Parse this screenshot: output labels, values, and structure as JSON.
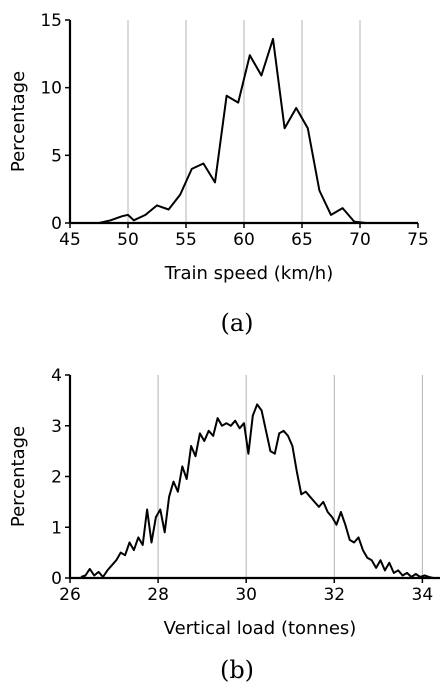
{
  "chart_data": [
    {
      "type": "line",
      "panel_label": "(a)",
      "xlabel": "Train speed (km/h)",
      "ylabel": "Percentage",
      "xlim": [
        45,
        75
      ],
      "ylim": [
        0,
        15
      ],
      "xticks": [
        45,
        50,
        55,
        60,
        65,
        70,
        75
      ],
      "yticks": [
        0,
        5,
        10,
        15
      ],
      "xgrid": [
        50,
        55,
        60,
        65,
        70
      ],
      "grid": "vertical",
      "series": [
        {
          "x": [
            47.5,
            48.5,
            49.5,
            50.0,
            50.5,
            51.5,
            52.5,
            53.5,
            54.5,
            55.5,
            56.5,
            57.5,
            58.5,
            59.5,
            60.5,
            61.5,
            62.5,
            63.5,
            64.5,
            65.5,
            66.5,
            67.5,
            68.5,
            69.5,
            70.5,
            71.5,
            72.5
          ],
          "y": [
            0.0,
            0.2,
            0.5,
            0.6,
            0.2,
            0.6,
            1.3,
            1.0,
            2.1,
            4.0,
            4.4,
            3.0,
            9.4,
            8.9,
            12.4,
            10.9,
            13.6,
            7.0,
            8.5,
            7.0,
            2.4,
            0.6,
            1.1,
            0.1,
            0.0,
            0.0,
            0.0
          ]
        }
      ]
    },
    {
      "type": "line",
      "panel_label": "(b)",
      "xlabel": "Vertical load (tonnes)",
      "ylabel": "Percentage",
      "xlim": [
        26,
        34.4
      ],
      "ylim": [
        0,
        4
      ],
      "xticks": [
        26,
        28,
        30,
        32,
        34
      ],
      "yticks": [
        0,
        1,
        2,
        3,
        4
      ],
      "xgrid": [
        28,
        30,
        32,
        34
      ],
      "grid": "vertical",
      "series": [
        {
          "x": [
            26.25,
            26.35,
            26.45,
            26.55,
            26.65,
            26.75,
            26.85,
            26.95,
            27.05,
            27.15,
            27.25,
            27.35,
            27.45,
            27.55,
            27.65,
            27.75,
            27.85,
            27.95,
            28.05,
            28.15,
            28.25,
            28.35,
            28.45,
            28.55,
            28.65,
            28.75,
            28.85,
            28.95,
            29.05,
            29.15,
            29.25,
            29.35,
            29.45,
            29.55,
            29.65,
            29.75,
            29.85,
            29.95,
            30.05,
            30.15,
            30.25,
            30.35,
            30.45,
            30.55,
            30.65,
            30.75,
            30.85,
            30.95,
            31.05,
            31.15,
            31.25,
            31.35,
            31.45,
            31.55,
            31.65,
            31.75,
            31.85,
            31.95,
            32.05,
            32.15,
            32.25,
            32.35,
            32.45,
            32.55,
            32.65,
            32.75,
            32.85,
            32.95,
            33.05,
            33.15,
            33.25,
            33.35,
            33.45,
            33.55,
            33.65,
            33.75,
            33.85,
            33.95,
            34.05,
            34.15,
            34.25
          ],
          "y": [
            0.02,
            0.05,
            0.18,
            0.05,
            0.12,
            0.02,
            0.15,
            0.25,
            0.35,
            0.5,
            0.45,
            0.7,
            0.55,
            0.8,
            0.65,
            1.35,
            0.7,
            1.2,
            1.35,
            0.9,
            1.6,
            1.9,
            1.7,
            2.2,
            1.95,
            2.6,
            2.4,
            2.85,
            2.7,
            2.9,
            2.8,
            3.15,
            3.0,
            3.05,
            3.0,
            3.1,
            2.95,
            3.05,
            2.45,
            3.2,
            3.42,
            3.3,
            2.9,
            2.5,
            2.45,
            2.85,
            2.9,
            2.8,
            2.6,
            2.1,
            1.65,
            1.7,
            1.6,
            1.5,
            1.4,
            1.5,
            1.3,
            1.2,
            1.05,
            1.3,
            1.05,
            0.75,
            0.7,
            0.8,
            0.55,
            0.4,
            0.35,
            0.2,
            0.35,
            0.15,
            0.3,
            0.1,
            0.15,
            0.05,
            0.1,
            0.02,
            0.08,
            0.02,
            0.05,
            0.02,
            0.0
          ]
        }
      ]
    }
  ]
}
